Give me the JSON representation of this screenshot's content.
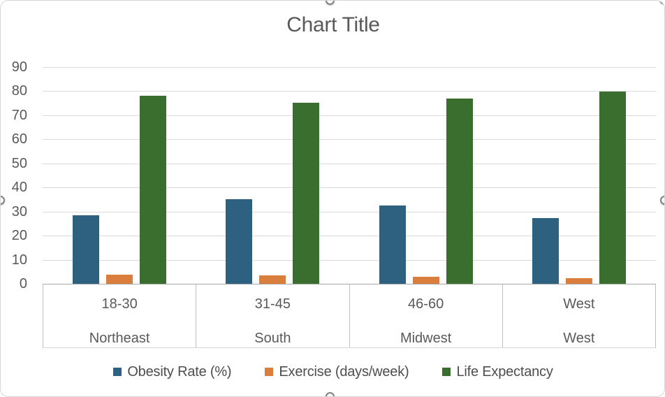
{
  "chart_data": {
    "type": "bar",
    "title": "Chart Title",
    "categories": [
      {
        "primary": "18-30",
        "secondary": "Northeast"
      },
      {
        "primary": "31-45",
        "secondary": "South"
      },
      {
        "primary": "46-60",
        "secondary": "Midwest"
      },
      {
        "primary": "West",
        "secondary": "West"
      }
    ],
    "series": [
      {
        "name": "Obesity Rate (%)",
        "color": "#2e6080",
        "values": [
          28.5,
          35.2,
          32.4,
          27.3
        ]
      },
      {
        "name": "Exercise (days/week)",
        "color": "#d97e3c",
        "values": [
          3.9,
          3.4,
          2.8,
          2.2
        ]
      },
      {
        "name": "Life Expectancy",
        "color": "#3a6e2f",
        "values": [
          78.2,
          75.3,
          77.0,
          79.9
        ]
      }
    ],
    "ylim": [
      0,
      90
    ],
    "yticks": [
      0,
      10,
      20,
      30,
      40,
      50,
      60,
      70,
      80,
      90
    ],
    "grid": true,
    "legend_position": "bottom",
    "xlabel": "",
    "ylabel": ""
  },
  "colors": {
    "gridline": "#dadada",
    "axis_line": "#a8a8a8",
    "table_line": "#c2c2c2",
    "text": "#595959",
    "legend_text": "#4d4d4d"
  }
}
